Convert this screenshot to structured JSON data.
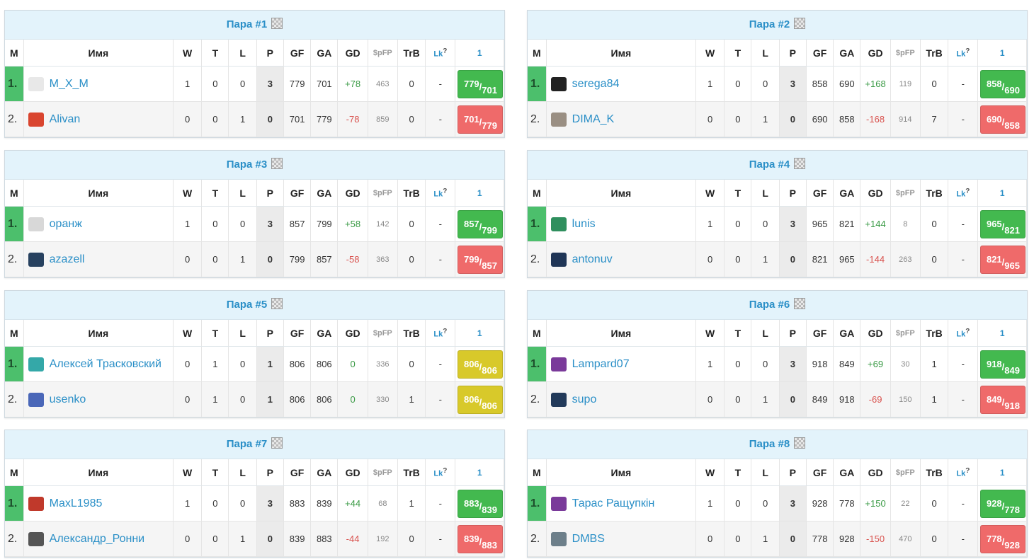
{
  "headers": {
    "m": "М",
    "name": "Имя",
    "w": "W",
    "t": "T",
    "l": "L",
    "p": "P",
    "gf": "GF",
    "ga": "GA",
    "gd": "GD",
    "spfp": "$pFP",
    "trb": "TrB",
    "lk": "Lk",
    "lk_q": "?",
    "round": "1"
  },
  "colors": {
    "win": "#43b94f",
    "loss": "#ef6a6a",
    "draw": "#d8c92a",
    "link": "#2a8fc7",
    "header_bg": "#e3f3fb"
  },
  "pairs": [
    {
      "title": "Пара #1",
      "rows": [
        {
          "pos": "1.",
          "name": "M_X_M",
          "icon": "white-shirt-icon",
          "w": "1",
          "t": "0",
          "l": "0",
          "p": "3",
          "gf": "779",
          "ga": "701",
          "gd": "+78",
          "spfp": "463",
          "trb": "0",
          "lk": "-",
          "score_a": "779",
          "score_b": "701",
          "result": "win"
        },
        {
          "pos": "2.",
          "name": "Alivan",
          "icon": "red-mascot-icon",
          "w": "0",
          "t": "0",
          "l": "1",
          "p": "0",
          "gf": "701",
          "ga": "779",
          "gd": "-78",
          "spfp": "859",
          "trb": "0",
          "lk": "-",
          "score_a": "701",
          "score_b": "779",
          "result": "loss"
        }
      ]
    },
    {
      "title": "Пара #2",
      "rows": [
        {
          "pos": "1.",
          "name": "serega84",
          "icon": "black-8-shirt-icon",
          "w": "1",
          "t": "0",
          "l": "0",
          "p": "3",
          "gf": "858",
          "ga": "690",
          "gd": "+168",
          "spfp": "119",
          "trb": "0",
          "lk": "-",
          "score_a": "858",
          "score_b": "690",
          "result": "win"
        },
        {
          "pos": "2.",
          "name": "DIMA_K",
          "icon": "portrait-avatar-icon",
          "w": "0",
          "t": "0",
          "l": "1",
          "p": "0",
          "gf": "690",
          "ga": "858",
          "gd": "-168",
          "spfp": "914",
          "trb": "7",
          "lk": "-",
          "score_a": "690",
          "score_b": "858",
          "result": "loss"
        }
      ]
    },
    {
      "title": "Пара #3",
      "rows": [
        {
          "pos": "1.",
          "name": "оранж",
          "icon": "text-logo-icon",
          "w": "1",
          "t": "0",
          "l": "0",
          "p": "3",
          "gf": "857",
          "ga": "799",
          "gd": "+58",
          "spfp": "142",
          "trb": "0",
          "lk": "-",
          "score_a": "857",
          "score_b": "799",
          "result": "win"
        },
        {
          "pos": "2.",
          "name": "azazell",
          "icon": "navy-12-shirt-icon",
          "w": "0",
          "t": "0",
          "l": "1",
          "p": "0",
          "gf": "799",
          "ga": "857",
          "gd": "-58",
          "spfp": "363",
          "trb": "0",
          "lk": "-",
          "score_a": "799",
          "score_b": "857",
          "result": "loss"
        }
      ]
    },
    {
      "title": "Пара #4",
      "rows": [
        {
          "pos": "1.",
          "name": "lunis",
          "icon": "green-helmet-icon",
          "w": "1",
          "t": "0",
          "l": "0",
          "p": "3",
          "gf": "965",
          "ga": "821",
          "gd": "+144",
          "spfp": "8",
          "trb": "0",
          "lk": "-",
          "score_a": "965",
          "score_b": "821",
          "result": "win"
        },
        {
          "pos": "2.",
          "name": "antonuv",
          "icon": "navy-shirt-icon",
          "w": "0",
          "t": "0",
          "l": "1",
          "p": "0",
          "gf": "821",
          "ga": "965",
          "gd": "-144",
          "spfp": "263",
          "trb": "0",
          "lk": "-",
          "score_a": "821",
          "score_b": "965",
          "result": "loss"
        }
      ]
    },
    {
      "title": "Пара #5",
      "rows": [
        {
          "pos": "1.",
          "name": "Алексей Трасковский",
          "icon": "teal-5-shirt-icon",
          "w": "0",
          "t": "1",
          "l": "0",
          "p": "1",
          "gf": "806",
          "ga": "806",
          "gd": "0",
          "spfp": "336",
          "trb": "0",
          "lk": "-",
          "score_a": "806",
          "score_b": "806",
          "result": "draw"
        },
        {
          "pos": "2.",
          "name": "usenko",
          "icon": "blue-badge-icon",
          "w": "0",
          "t": "1",
          "l": "0",
          "p": "1",
          "gf": "806",
          "ga": "806",
          "gd": "0",
          "spfp": "330",
          "trb": "1",
          "lk": "-",
          "score_a": "806",
          "score_b": "806",
          "result": "draw"
        }
      ]
    },
    {
      "title": "Пара #6",
      "rows": [
        {
          "pos": "1.",
          "name": "Lampard07",
          "icon": "purple-7-shirt-icon",
          "w": "1",
          "t": "0",
          "l": "0",
          "p": "3",
          "gf": "918",
          "ga": "849",
          "gd": "+69",
          "spfp": "30",
          "trb": "1",
          "lk": "-",
          "score_a": "918",
          "score_b": "849",
          "result": "win"
        },
        {
          "pos": "2.",
          "name": "supo",
          "icon": "navy-4-shirt-icon",
          "w": "0",
          "t": "0",
          "l": "1",
          "p": "0",
          "gf": "849",
          "ga": "918",
          "gd": "-69",
          "spfp": "150",
          "trb": "1",
          "lk": "-",
          "score_a": "849",
          "score_b": "918",
          "result": "loss"
        }
      ]
    },
    {
      "title": "Пара #7",
      "rows": [
        {
          "pos": "1.",
          "name": "MaxL1985",
          "icon": "red-eagle-icon",
          "w": "1",
          "t": "0",
          "l": "0",
          "p": "3",
          "gf": "883",
          "ga": "839",
          "gd": "+44",
          "spfp": "68",
          "trb": "1",
          "lk": "-",
          "score_a": "883",
          "score_b": "839",
          "result": "win"
        },
        {
          "pos": "2.",
          "name": "Александр_Ронни",
          "icon": "black-figure-icon",
          "w": "0",
          "t": "0",
          "l": "1",
          "p": "0",
          "gf": "839",
          "ga": "883",
          "gd": "-44",
          "spfp": "192",
          "trb": "0",
          "lk": "-",
          "score_a": "839",
          "score_b": "883",
          "result": "loss"
        }
      ]
    },
    {
      "title": "Пара #8",
      "rows": [
        {
          "pos": "1.",
          "name": "Тарас Ращупкін",
          "icon": "purple-13-shirt-icon",
          "w": "1",
          "t": "0",
          "l": "0",
          "p": "3",
          "gf": "928",
          "ga": "778",
          "gd": "+150",
          "spfp": "22",
          "trb": "0",
          "lk": "-",
          "score_a": "928",
          "score_b": "778",
          "result": "win"
        },
        {
          "pos": "2.",
          "name": "DMBS",
          "icon": "photo-avatar-icon",
          "w": "0",
          "t": "0",
          "l": "1",
          "p": "0",
          "gf": "778",
          "ga": "928",
          "gd": "-150",
          "spfp": "470",
          "trb": "0",
          "lk": "-",
          "score_a": "778",
          "score_b": "928",
          "result": "loss"
        }
      ]
    }
  ]
}
